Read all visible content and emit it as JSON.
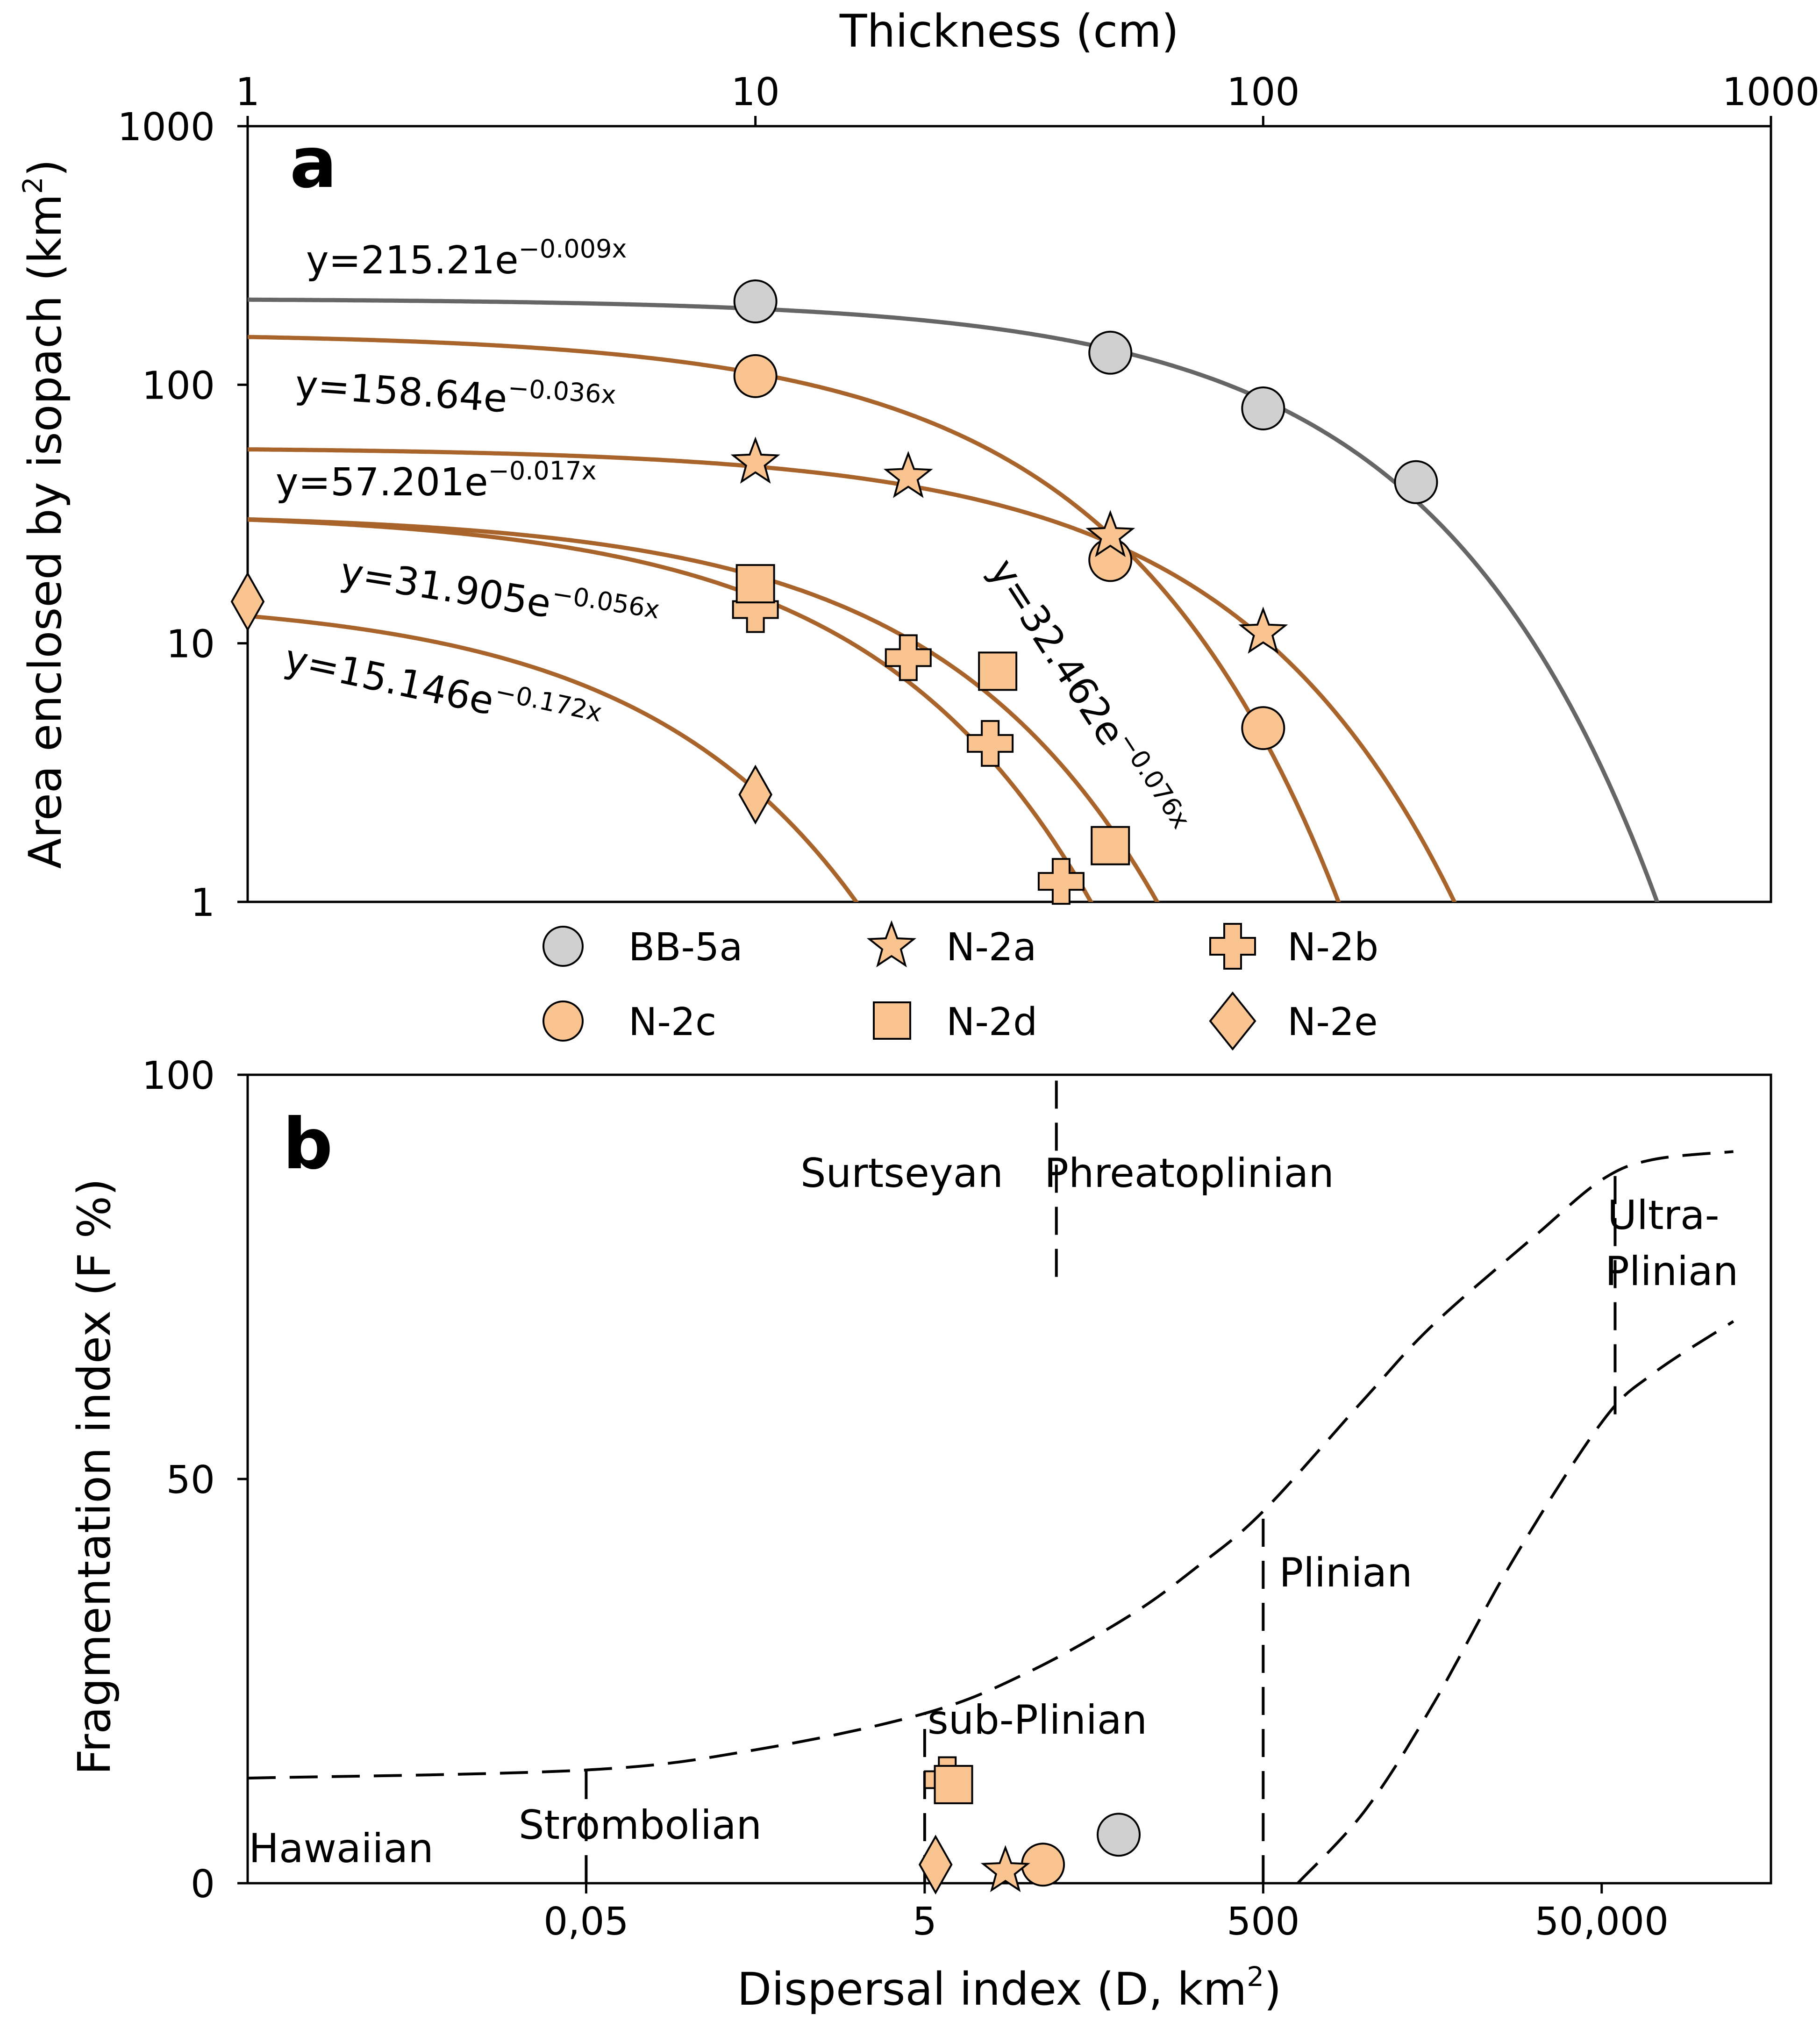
{
  "colors": {
    "gray_curve": "#666666",
    "brown_curve": "#A8642B",
    "marker_gray": "#D0D0D0",
    "marker_orange": "#F9C490",
    "axis": "#000000"
  },
  "chart_data": [
    {
      "type": "scatter",
      "panel_label": "a",
      "xlabel": "Thickness (cm)",
      "ylabel": "Area enclosed by isopach (km²)",
      "ylabel_main": "Area enclosed by isopach (km",
      "ylabel_sup": "2",
      "ylabel_close": ")",
      "xscale": "log",
      "yscale": "log",
      "xlim": [
        1,
        1000
      ],
      "ylim": [
        1,
        1000
      ],
      "xticks": [
        1,
        10,
        100,
        1000
      ],
      "xtick_labels": [
        "1",
        "10",
        "100",
        "1000"
      ],
      "yticks": [
        1,
        10,
        100,
        1000
      ],
      "ytick_labels": [
        "1",
        "10",
        "100",
        "1000"
      ],
      "series": [
        {
          "name": "BB-5a",
          "marker": "circle",
          "fill": "gray",
          "a": 215.21,
          "b": 0.009,
          "eq_base": "y=215.21e",
          "eq_exp": "−0.009x",
          "points": [
            [
              10,
              210
            ],
            [
              50,
              133
            ],
            [
              100,
              81
            ],
            [
              200,
              42
            ]
          ]
        },
        {
          "name": "N-2c",
          "marker": "circle",
          "fill": "orange",
          "a": 158.64,
          "b": 0.036,
          "eq_base": "y=158.64e",
          "eq_exp": "−0.036x",
          "points": [
            [
              10,
              108
            ],
            [
              50,
              21
            ],
            [
              100,
              4.7
            ]
          ]
        },
        {
          "name": "N-2a",
          "marker": "star",
          "fill": "orange",
          "a": 57.201,
          "b": 0.017,
          "eq_base": "y=57.201e",
          "eq_exp": "−0.017x",
          "points": [
            [
              10,
              50
            ],
            [
              20,
              44
            ],
            [
              50,
              26
            ],
            [
              100,
              11
            ]
          ]
        },
        {
          "name": "N-2b",
          "marker": "cross",
          "fill": "orange",
          "a": 31.905,
          "b": 0.056,
          "eq_base": "y=31.905e",
          "eq_exp": "−0.056x",
          "points": [
            [
              10,
              13.5
            ],
            [
              20,
              8.8
            ],
            [
              29,
              4.1
            ],
            [
              40,
              1.2
            ]
          ]
        },
        {
          "name": "N-2d",
          "marker": "square",
          "fill": "orange",
          "a": 32.462,
          "b": 0.076,
          "eq_base": "y=32.462e",
          "eq_exp": "−0.076x",
          "points": [
            [
              10,
              17
            ],
            [
              30,
              7.8
            ],
            [
              50,
              1.65
            ]
          ]
        },
        {
          "name": "N-2e",
          "marker": "diamond",
          "fill": "orange",
          "a": 15.146,
          "b": 0.172,
          "eq_base": "y=15.146e",
          "eq_exp": "−0.172x",
          "points": [
            [
              1,
              14.5
            ],
            [
              10,
              2.6
            ]
          ]
        }
      ],
      "legend": [
        "BB-5a",
        "N-2a",
        "N-2b",
        "N-2c",
        "N-2d",
        "N-2e"
      ]
    },
    {
      "type": "scatter",
      "panel_label": "b",
      "xlabel": "Dispersal index (D, km²)",
      "xlabel_main": "Dispersal index (D, km",
      "xlabel_sup": "2",
      "xlabel_close": ")",
      "ylabel": "Fragmentation index (F %)",
      "xscale": "log",
      "xlim": [
        0.0005,
        500000
      ],
      "ylim": [
        0,
        100
      ],
      "xticks": [
        0.05,
        5,
        500,
        50000
      ],
      "xtick_labels": [
        "0,05",
        "5",
        "500",
        "50,000"
      ],
      "yticks": [
        0,
        50,
        100
      ],
      "ytick_labels": [
        "0",
        "50",
        "100"
      ],
      "regions": [
        "Surtseyan",
        "Phreatoplinian",
        "Ultra-",
        "Plinian",
        "Plinian",
        "sub-Plinian",
        "Strombolian",
        "Hawaiian"
      ],
      "points": [
        {
          "name": "BB-5a",
          "marker": "circle",
          "fill": "gray",
          "x": 70,
          "y": 6
        },
        {
          "name": "N-2c",
          "marker": "circle",
          "fill": "orange",
          "x": 25,
          "y": 2.3
        },
        {
          "name": "N-2a",
          "marker": "star",
          "fill": "orange",
          "x": 15,
          "y": 1.5
        },
        {
          "name": "N-2b",
          "marker": "cross",
          "fill": "orange",
          "x": 6.8,
          "y": 12.8
        },
        {
          "name": "N-2d",
          "marker": "square",
          "fill": "orange",
          "x": 7.4,
          "y": 12.2
        },
        {
          "name": "N-2e",
          "marker": "diamond",
          "fill": "orange",
          "x": 5.8,
          "y": 2.3
        }
      ],
      "boundaries": {
        "upper_curve": [
          [
            0.0005,
            13
          ],
          [
            0.05,
            14
          ],
          [
            0.5,
            16.5
          ],
          [
            5,
            21
          ],
          [
            20,
            26
          ],
          [
            80,
            33
          ],
          [
            200,
            39
          ],
          [
            500,
            46
          ],
          [
            2000,
            60
          ],
          [
            5000,
            69
          ],
          [
            20000,
            80
          ],
          [
            50000,
            87
          ],
          [
            100000,
            89.5
          ],
          [
            300000,
            90.5
          ]
        ],
        "lower_curve": [
          [
            800,
            0
          ],
          [
            2000,
            9
          ],
          [
            5000,
            22
          ],
          [
            15000,
            40
          ],
          [
            50000,
            57
          ],
          [
            100000,
            63
          ],
          [
            300000,
            69.5
          ]
        ],
        "verticals": [
          {
            "x": 0.05,
            "y0": 0,
            "y1": 14
          },
          {
            "x": 5,
            "y0": 0,
            "y1": 21
          },
          {
            "x": 500,
            "y0": 0,
            "y1": 46
          },
          {
            "x": 60000,
            "y0": 58,
            "y1": 88
          },
          {
            "x": 30,
            "y0": 75,
            "y1": 100
          }
        ]
      }
    }
  ]
}
